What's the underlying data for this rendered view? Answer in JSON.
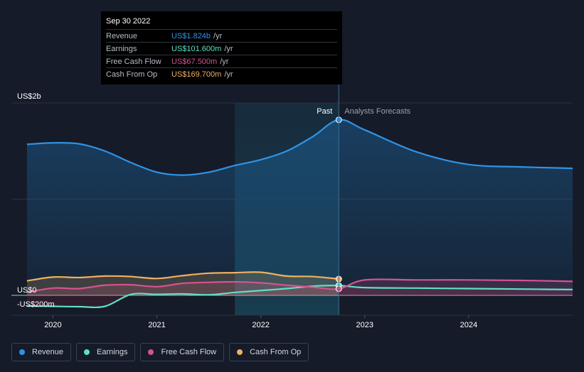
{
  "tooltip": {
    "date": "Sep 30 2022",
    "rows": [
      {
        "label": "Revenue",
        "value": "US$1.824b",
        "unit": "/yr",
        "color": "#2e93e6"
      },
      {
        "label": "Earnings",
        "value": "US$101.600m",
        "unit": "/yr",
        "color": "#5fe0c6"
      },
      {
        "label": "Free Cash Flow",
        "value": "US$67.500m",
        "unit": "/yr",
        "color": "#d6538f"
      },
      {
        "label": "Cash From Op",
        "value": "US$169.700m",
        "unit": "/yr",
        "color": "#f0b060"
      }
    ]
  },
  "legend": [
    {
      "label": "Revenue",
      "color": "#2e93e6"
    },
    {
      "label": "Earnings",
      "color": "#5fe0c6"
    },
    {
      "label": "Free Cash Flow",
      "color": "#d6538f"
    },
    {
      "label": "Cash From Op",
      "color": "#f0b060"
    }
  ],
  "chart_data": {
    "type": "line",
    "ylim": [
      -200,
      2000
    ],
    "xlim": [
      2019.6,
      2025.0
    ],
    "y_ticks": [
      {
        "value": 2000,
        "label": "US$2b"
      },
      {
        "value": 0,
        "label": "US$0"
      },
      {
        "value": -200,
        "label": "-US$200m"
      }
    ],
    "x_ticks": [
      {
        "value": 2020,
        "label": "2020"
      },
      {
        "value": 2021,
        "label": "2021"
      },
      {
        "value": 2022,
        "label": "2022"
      },
      {
        "value": 2023,
        "label": "2023"
      },
      {
        "value": 2024,
        "label": "2024"
      }
    ],
    "past_label": "Past",
    "forecast_label": "Analysts Forecasts",
    "past_end": 2022.75,
    "highlight_start": 2021.75,
    "grid": true,
    "series": [
      {
        "name": "Revenue",
        "color": "#2e93e6",
        "x": [
          2019.75,
          2020.0,
          2020.25,
          2020.5,
          2020.75,
          2021.0,
          2021.25,
          2021.5,
          2021.75,
          2022.0,
          2022.25,
          2022.5,
          2022.75,
          2023.0,
          2023.5,
          2024.0,
          2024.5,
          2025.0
        ],
        "y": [
          1570,
          1585,
          1575,
          1500,
          1380,
          1280,
          1250,
          1280,
          1350,
          1410,
          1500,
          1650,
          1824,
          1720,
          1490,
          1360,
          1335,
          1320
        ]
      },
      {
        "name": "Earnings",
        "color": "#5fe0c6",
        "x": [
          2019.75,
          2020.0,
          2020.25,
          2020.5,
          2020.75,
          2021.0,
          2021.25,
          2021.5,
          2021.75,
          2022.0,
          2022.25,
          2022.5,
          2022.75,
          2023.0,
          2023.5,
          2024.0,
          2024.5,
          2025.0
        ],
        "y": [
          -150,
          -155,
          -160,
          -155,
          10,
          10,
          15,
          5,
          30,
          50,
          70,
          95,
          101.6,
          80,
          75,
          70,
          65,
          60
        ]
      },
      {
        "name": "Free Cash Flow",
        "color": "#d6538f",
        "x": [
          2019.75,
          2020.0,
          2020.25,
          2020.5,
          2020.75,
          2021.0,
          2021.25,
          2021.5,
          2021.75,
          2022.0,
          2022.25,
          2022.5,
          2022.75,
          2023.0,
          2023.5,
          2024.0,
          2024.5,
          2025.0
        ],
        "y": [
          30,
          75,
          70,
          105,
          110,
          90,
          125,
          135,
          140,
          130,
          105,
          85,
          67.5,
          160,
          160,
          160,
          155,
          145
        ]
      },
      {
        "name": "Cash From Op",
        "color": "#f0b060",
        "x": [
          2019.75,
          2020.0,
          2020.25,
          2020.5,
          2020.75,
          2021.0,
          2021.25,
          2021.5,
          2021.75,
          2022.0,
          2022.25,
          2022.5,
          2022.75
        ],
        "y": [
          150,
          190,
          185,
          200,
          195,
          175,
          205,
          230,
          235,
          240,
          200,
          195,
          169.7
        ]
      }
    ]
  }
}
